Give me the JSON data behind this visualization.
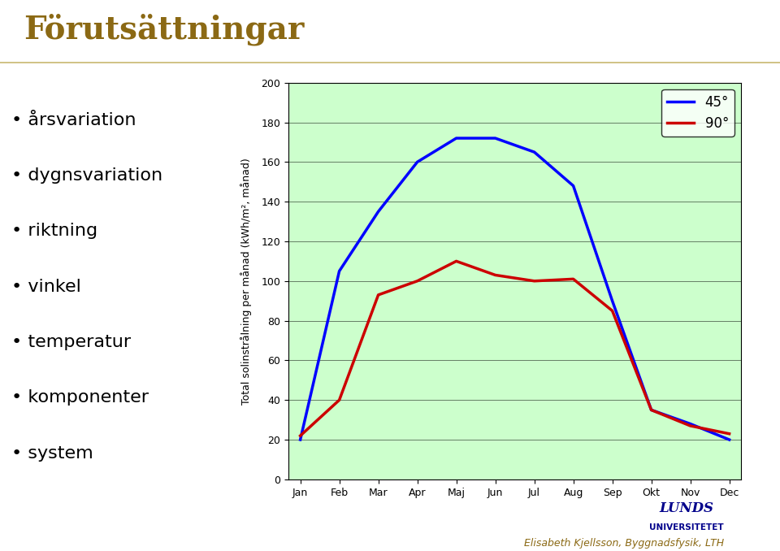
{
  "months": [
    "Jan",
    "Feb",
    "Mar",
    "Apr",
    "Maj",
    "Jun",
    "Jul",
    "Aug",
    "Sep",
    "Okt",
    "Nov",
    "Dec"
  ],
  "series_45": [
    20,
    105,
    135,
    160,
    172,
    172,
    165,
    148,
    90,
    35,
    28,
    20
  ],
  "series_90": [
    22,
    40,
    93,
    100,
    110,
    103,
    100,
    101,
    85,
    35,
    27,
    23
  ],
  "color_45": "#0000FF",
  "color_90": "#CC0000",
  "ylabel": "Total solinstrålning per månad (kWh/m², månad)",
  "ylim": [
    0,
    200
  ],
  "yticks": [
    0,
    20,
    40,
    60,
    80,
    100,
    120,
    140,
    160,
    180,
    200
  ],
  "legend_45": "45°",
  "legend_90": "90°",
  "title": "Förutsättningar",
  "title_color": "#8B6914",
  "background_plot": "#CCFFCC",
  "background_chart": "#EEFFCC",
  "separator_color": "#C8B870",
  "bullet_items": [
    "årsvariation",
    "dygnsvariation",
    "riktning",
    "vinkel",
    "temperatur",
    "komponenter",
    "system"
  ],
  "bottom_text": "Elisabeth Kjellsson, Byggnadsfysik, LTH",
  "bottom_text_color": "#8B6914",
  "lunds_text_color": "#00008B",
  "line_width": 2.5
}
